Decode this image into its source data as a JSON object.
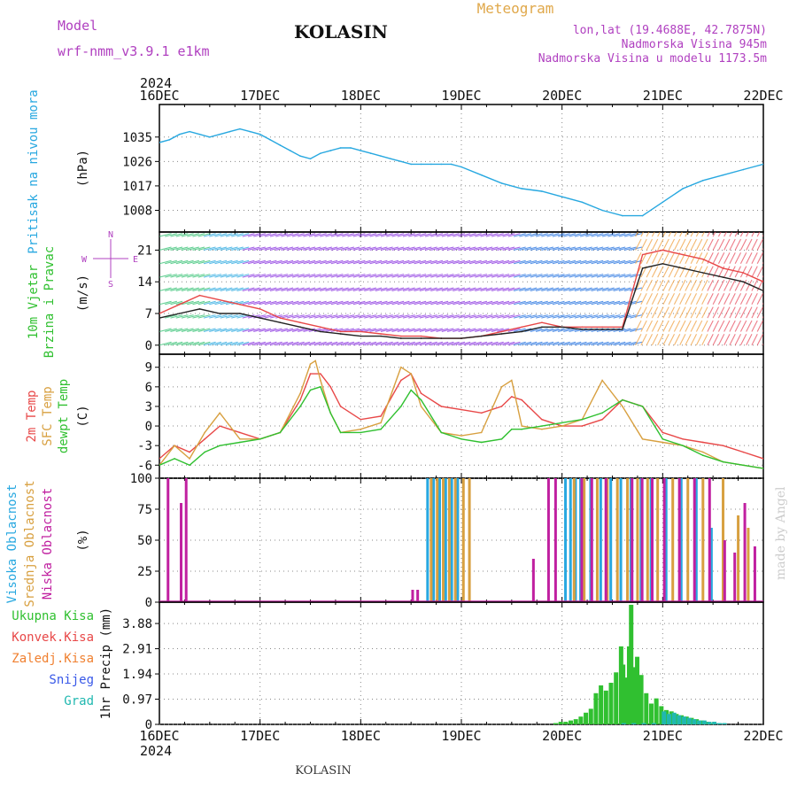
{
  "header": {
    "model_label": "Model",
    "model_name": "wrf-nmm_v3.9.1  e1km",
    "station": "KOLASIN",
    "meteogram_label": "Meteogram",
    "lonlat": "lon,lat (19.4688E, 42.7875N)",
    "elevation": "Nadmorska Visina 945m",
    "model_elevation": "Nadmorska Visina u modelu 1173.5m",
    "year_top": "2024",
    "year_bottom": "2024",
    "footer_station": "KOLASIN",
    "credit": "made by Angel"
  },
  "colors": {
    "purple": "#b040c0",
    "orange": "#e0a84a",
    "sky": "#28a8e0",
    "green": "#30c030",
    "red": "#e84848",
    "tan": "#d8a040",
    "magenta": "#c020a0",
    "blue": "#3858e8",
    "teal": "#20b8b0",
    "grid": "#888888"
  },
  "time_axis": {
    "labels": [
      "16DEC",
      "17DEC",
      "18DEC",
      "19DEC",
      "20DEC",
      "21DEC",
      "22DEC"
    ],
    "days": [
      0,
      1,
      2,
      3,
      4,
      5,
      6
    ]
  },
  "chart_data": [
    {
      "type": "line",
      "panel": "pressure",
      "ylabel_side": "Pritisak na nivou mora",
      "unit": "(hPa)",
      "ylim": [
        1000,
        1047
      ],
      "yticks": [
        1008,
        1017,
        1026,
        1035
      ],
      "grid": true,
      "series": [
        {
          "color": "#28a8e0",
          "x": [
            0,
            0.1,
            0.2,
            0.3,
            0.4,
            0.5,
            0.6,
            0.7,
            0.8,
            0.9,
            1.0,
            1.1,
            1.2,
            1.3,
            1.4,
            1.5,
            1.6,
            1.7,
            1.8,
            1.9,
            2.0,
            2.1,
            2.2,
            2.3,
            2.4,
            2.5,
            2.6,
            2.7,
            2.8,
            2.9,
            3.0,
            3.2,
            3.4,
            3.6,
            3.8,
            4.0,
            4.2,
            4.4,
            4.6,
            4.8,
            5.0,
            5.2,
            5.4,
            5.6,
            5.8,
            6.0
          ],
          "y": [
            1033,
            1034,
            1036,
            1037,
            1036,
            1035,
            1036,
            1037,
            1038,
            1037,
            1036,
            1034,
            1032,
            1030,
            1028,
            1027,
            1029,
            1030,
            1031,
            1031,
            1030,
            1029,
            1028,
            1027,
            1026,
            1025,
            1025,
            1025,
            1025,
            1025,
            1024,
            1021,
            1018,
            1016,
            1015,
            1013,
            1011,
            1008,
            1006,
            1006,
            1011,
            1016,
            1019,
            1021,
            1023,
            1025
          ]
        }
      ]
    },
    {
      "type": "line",
      "panel": "wind",
      "ylabel_side": "10m Vjetar Brzina i Pravac",
      "unit": "(m/s)",
      "compass": {
        "n": "N",
        "s": "S",
        "w": "W",
        "e": "E"
      },
      "ylim": [
        -2,
        25
      ],
      "yticks": [
        0,
        7,
        14,
        21
      ],
      "grid": true,
      "series": [
        {
          "color": "#e84848",
          "x": [
            0,
            0.2,
            0.4,
            0.6,
            0.8,
            1.0,
            1.2,
            1.4,
            1.6,
            1.8,
            2.0,
            2.2,
            2.4,
            2.6,
            2.8,
            3.0,
            3.2,
            3.4,
            3.6,
            3.8,
            4.0,
            4.2,
            4.4,
            4.6,
            4.8,
            5.0,
            5.2,
            5.4,
            5.6,
            5.8,
            6.0
          ],
          "y": [
            7,
            9,
            11,
            10,
            9,
            8,
            6,
            5,
            4,
            3,
            3,
            2.5,
            2,
            2,
            1.5,
            1.5,
            2,
            3,
            4,
            5,
            4,
            4,
            4,
            4,
            20,
            21,
            20,
            19,
            17,
            16,
            14
          ]
        },
        {
          "color": "#222222",
          "x": [
            0,
            0.2,
            0.4,
            0.6,
            0.8,
            1.0,
            1.2,
            1.4,
            1.6,
            1.8,
            2.0,
            2.2,
            2.4,
            2.6,
            2.8,
            3.0,
            3.2,
            3.4,
            3.6,
            3.8,
            4.0,
            4.2,
            4.4,
            4.6,
            4.8,
            5.0,
            5.2,
            5.4,
            5.6,
            5.8,
            6.0
          ],
          "y": [
            6,
            7,
            8,
            7,
            7,
            6,
            5,
            4,
            3,
            2.5,
            2,
            2,
            1.5,
            1.5,
            1.5,
            1.5,
            2,
            2.5,
            3,
            4,
            4,
            3.5,
            3.5,
            3.5,
            17,
            18,
            17,
            16,
            15,
            14,
            12
          ]
        }
      ]
    },
    {
      "type": "line",
      "panel": "temperature",
      "ylabel_side": [
        "2m Temp",
        "SFC Temp",
        "dewpt Temp"
      ],
      "unit": "(C)",
      "ylim": [
        -8,
        11
      ],
      "yticks": [
        -6,
        -3,
        0,
        3,
        6,
        9
      ],
      "grid": true,
      "series": [
        {
          "color": "#e84848",
          "x": [
            0,
            0.15,
            0.3,
            0.45,
            0.6,
            0.8,
            1.0,
            1.2,
            1.4,
            1.5,
            1.6,
            1.7,
            1.8,
            2.0,
            2.2,
            2.4,
            2.5,
            2.6,
            2.8,
            3.0,
            3.2,
            3.4,
            3.5,
            3.6,
            3.8,
            4.0,
            4.2,
            4.4,
            4.6,
            4.8,
            5.0,
            5.2,
            5.4,
            5.6,
            5.8,
            6.0
          ],
          "y": [
            -5,
            -3,
            -4,
            -2,
            0,
            -1,
            -2,
            -1,
            4,
            8,
            8,
            6,
            3,
            1,
            1.5,
            7,
            8,
            5,
            3,
            2.5,
            2,
            3,
            4.5,
            4,
            1,
            0,
            0,
            1,
            4,
            3,
            -1,
            -2,
            -2.5,
            -3,
            -4,
            -5
          ]
        },
        {
          "color": "#d8a040",
          "x": [
            0,
            0.15,
            0.3,
            0.45,
            0.6,
            0.8,
            1.0,
            1.2,
            1.4,
            1.5,
            1.55,
            1.6,
            1.7,
            1.8,
            2.0,
            2.2,
            2.4,
            2.5,
            2.6,
            2.8,
            3.0,
            3.2,
            3.4,
            3.5,
            3.6,
            3.8,
            4.0,
            4.2,
            4.4,
            4.6,
            4.8,
            5.0,
            5.2,
            5.4,
            5.6,
            5.8,
            6.0
          ],
          "y": [
            -6,
            -3,
            -5,
            -1,
            2,
            -2,
            -2,
            -1,
            5,
            9.5,
            10,
            7,
            2,
            -1,
            -0.5,
            0.5,
            9,
            8,
            3,
            -1,
            -1.5,
            -1,
            6,
            7,
            0,
            -0.5,
            0,
            1,
            7,
            3,
            -2,
            -2.5,
            -3,
            -4,
            -5.5,
            -6,
            -6.5
          ]
        },
        {
          "color": "#30c030",
          "x": [
            0,
            0.15,
            0.3,
            0.45,
            0.6,
            0.8,
            1.0,
            1.2,
            1.4,
            1.5,
            1.6,
            1.7,
            1.8,
            2.0,
            2.2,
            2.4,
            2.5,
            2.6,
            2.8,
            3.0,
            3.2,
            3.4,
            3.5,
            3.6,
            3.8,
            4.0,
            4.2,
            4.4,
            4.6,
            4.8,
            5.0,
            5.2,
            5.4,
            5.6,
            5.8,
            6.0
          ],
          "y": [
            -6,
            -5,
            -6,
            -4,
            -3,
            -2.5,
            -2,
            -1,
            3,
            5.5,
            6,
            2,
            -1,
            -1,
            -0.5,
            3,
            5.5,
            4,
            -1,
            -2,
            -2.5,
            -2,
            -0.5,
            -0.5,
            0,
            0.5,
            1,
            2,
            4,
            3,
            -2,
            -3,
            -4.5,
            -5.5,
            -6,
            -6.5
          ]
        }
      ]
    },
    {
      "type": "bar",
      "panel": "clouds",
      "ylabel_side": [
        "Visoka Oblacnost",
        "Srednja Oblacnost",
        "Niska Oblacnost"
      ],
      "unit": "(%)",
      "ylim": [
        0,
        100
      ],
      "yticks": [
        0,
        25,
        50,
        75,
        100
      ],
      "grid": true,
      "series": [
        {
          "name": "Visoka Oblacnost",
          "color": "#28a8e0",
          "x": [
            2.68,
            2.74,
            2.8,
            2.86,
            2.92,
            2.98,
            4.05,
            4.1,
            4.15,
            4.2,
            4.3,
            4.4,
            4.5,
            4.6,
            4.7,
            4.8,
            4.9,
            5.05,
            5.2,
            5.35,
            5.5
          ],
          "values": [
            100,
            100,
            100,
            100,
            100,
            100,
            100,
            100,
            100,
            100,
            100,
            100,
            100,
            100,
            100,
            100,
            100,
            100,
            100,
            100,
            60
          ]
        },
        {
          "name": "Srednja Oblacnost",
          "color": "#d8a040",
          "x": [
            2.7,
            2.76,
            2.82,
            2.88,
            2.94,
            3.02,
            3.08,
            4.12,
            4.22,
            4.35,
            4.45,
            4.55,
            4.65,
            4.75,
            4.85,
            4.95,
            5.1,
            5.25,
            5.4,
            5.6,
            5.75,
            5.85
          ],
          "values": [
            100,
            100,
            100,
            100,
            100,
            100,
            100,
            100,
            100,
            100,
            100,
            100,
            100,
            100,
            100,
            100,
            100,
            100,
            100,
            100,
            70,
            60
          ]
        },
        {
          "name": "Niska Oblacnost",
          "color": "#c020a0",
          "x": [
            0.07,
            0.2,
            0.25,
            2.5,
            2.55,
            3.7,
            3.85,
            3.92,
            4.18,
            4.28,
            4.42,
            4.68,
            4.78,
            4.88,
            5.0,
            5.15,
            5.3,
            5.45,
            5.6,
            5.7,
            5.8,
            5.9
          ],
          "values": [
            100,
            80,
            100,
            10,
            10,
            35,
            100,
            100,
            100,
            100,
            100,
            100,
            100,
            100,
            100,
            100,
            100,
            100,
            50,
            40,
            80,
            45
          ]
        }
      ]
    },
    {
      "type": "bar",
      "panel": "precipitation",
      "ylabel_side": [
        "Ukupna Kisa",
        "Konvek.Kisa",
        "Zaledj.Kisa",
        "Snijeg",
        "Grad"
      ],
      "unit": "1hr Precip (mm)",
      "ylim": [
        0,
        4.7
      ],
      "yticks": [
        0,
        0.97,
        1.94,
        2.91,
        3.88
      ],
      "grid": true,
      "series": [
        {
          "name": "Ukupna Kisa",
          "color": "#30c030",
          "x": [
            3.95,
            4.0,
            4.05,
            4.1,
            4.15,
            4.2,
            4.25,
            4.3,
            4.35,
            4.4,
            4.45,
            4.5,
            4.55,
            4.6,
            4.62,
            4.65,
            4.68,
            4.7,
            4.73,
            4.76,
            4.8,
            4.85,
            4.9,
            4.95,
            5.0,
            5.05,
            5.1,
            5.15,
            5.2,
            5.25,
            5.3,
            5.35,
            5.4,
            5.45,
            5.5
          ],
          "values": [
            0.05,
            0.1,
            0.1,
            0.15,
            0.2,
            0.3,
            0.45,
            0.6,
            1.2,
            1.5,
            1.3,
            1.6,
            2.0,
            3.0,
            2.3,
            1.8,
            3.0,
            4.6,
            2.2,
            2.6,
            1.9,
            1.2,
            0.8,
            1.0,
            0.7,
            0.55,
            0.5,
            0.4,
            0.35,
            0.3,
            0.25,
            0.2,
            0.15,
            0.1,
            0.05
          ]
        },
        {
          "name": "Grad",
          "color": "#20b8b0",
          "x": [
            4.6,
            4.7,
            4.8,
            4.9,
            5.0,
            5.05,
            5.1,
            5.15,
            5.2,
            5.25,
            5.3,
            5.35,
            5.4,
            5.45,
            5.5,
            5.55,
            5.6
          ],
          "values": [
            0.05,
            0.05,
            0.05,
            0.05,
            0.5,
            0.4,
            0.45,
            0.35,
            0.3,
            0.25,
            0.2,
            0.15,
            0.15,
            0.1,
            0.1,
            0.05,
            0.05
          ]
        }
      ]
    }
  ]
}
